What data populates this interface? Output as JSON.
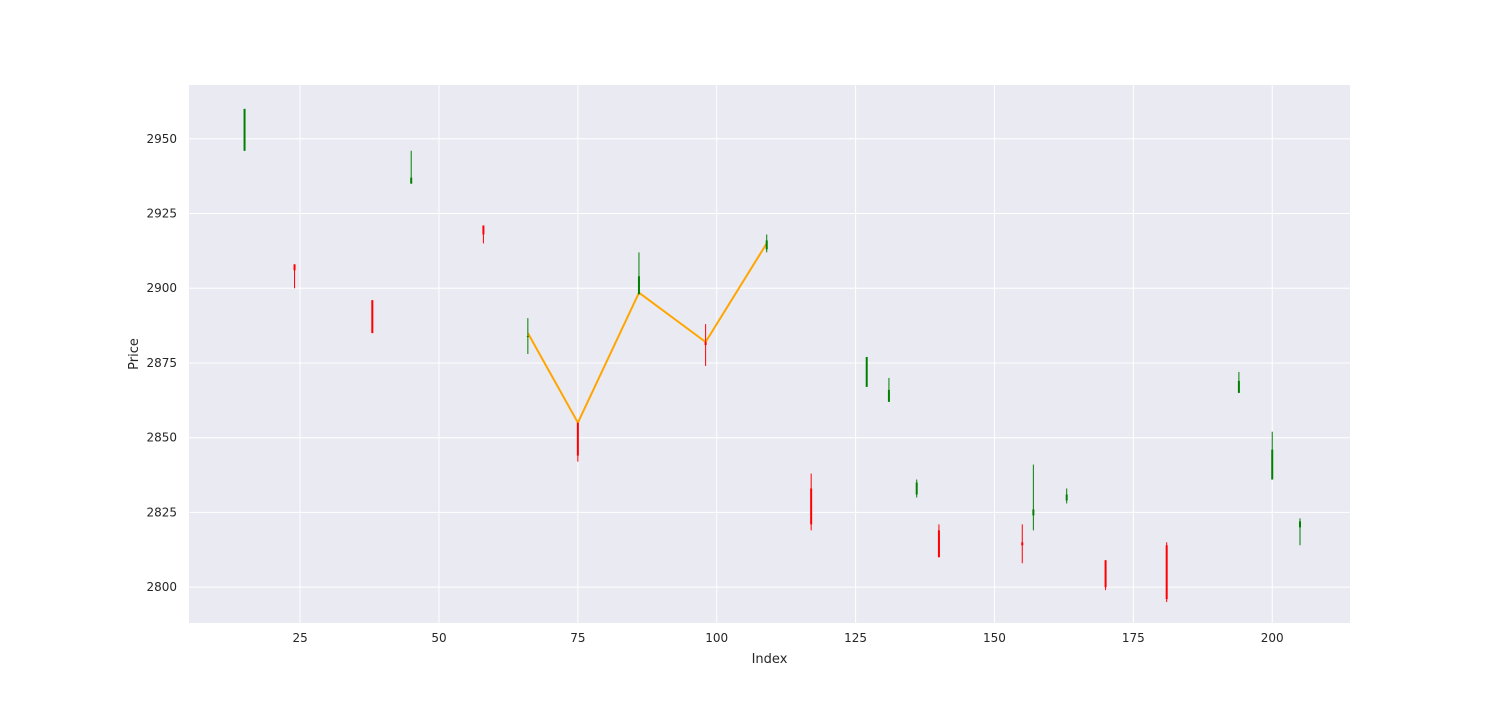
{
  "chart_data": {
    "type": "candlestick",
    "xlabel": "Index",
    "ylabel": "Price",
    "xlim": [
      5,
      214
    ],
    "ylim": [
      2788,
      2968
    ],
    "x_ticks": [
      25,
      50,
      75,
      100,
      125,
      150,
      175,
      200
    ],
    "y_ticks": [
      2800,
      2825,
      2850,
      2875,
      2900,
      2925,
      2950
    ],
    "grid": true,
    "legend": "none",
    "colors": {
      "background": "#eaeaf2",
      "grid": "#ffffff",
      "up": "#008000",
      "down": "#ff0000",
      "line": "#ffa500"
    },
    "candles": [
      {
        "x": 15,
        "open": 2946,
        "high": 2960,
        "low": 2946,
        "close": 2960
      },
      {
        "x": 24,
        "open": 2908,
        "high": 2908,
        "low": 2900,
        "close": 2906
      },
      {
        "x": 38,
        "open": 2896,
        "high": 2896,
        "low": 2885,
        "close": 2885
      },
      {
        "x": 45,
        "open": 2935,
        "high": 2946,
        "low": 2935,
        "close": 2937
      },
      {
        "x": 58,
        "open": 2921,
        "high": 2921,
        "low": 2915,
        "close": 2918
      },
      {
        "x": 66,
        "open": 2884,
        "high": 2890,
        "low": 2878,
        "close": 2884
      },
      {
        "x": 75,
        "open": 2855,
        "high": 2855,
        "low": 2842,
        "close": 2844
      },
      {
        "x": 86,
        "open": 2898,
        "high": 2912,
        "low": 2898,
        "close": 2904
      },
      {
        "x": 98,
        "open": 2882,
        "high": 2888,
        "low": 2874,
        "close": 2881
      },
      {
        "x": 109,
        "open": 2913,
        "high": 2918,
        "low": 2912,
        "close": 2916
      },
      {
        "x": 117,
        "open": 2833,
        "high": 2838,
        "low": 2819,
        "close": 2821
      },
      {
        "x": 127,
        "open": 2867,
        "high": 2877,
        "low": 2867,
        "close": 2877
      },
      {
        "x": 131,
        "open": 2862,
        "high": 2870,
        "low": 2862,
        "close": 2866
      },
      {
        "x": 136,
        "open": 2831,
        "high": 2836,
        "low": 2830,
        "close": 2835
      },
      {
        "x": 140,
        "open": 2819,
        "high": 2821,
        "low": 2810,
        "close": 2810
      },
      {
        "x": 155,
        "open": 2815,
        "high": 2821,
        "low": 2808,
        "close": 2814
      },
      {
        "x": 157,
        "open": 2824,
        "high": 2841,
        "low": 2819,
        "close": 2826
      },
      {
        "x": 163,
        "open": 2829,
        "high": 2833,
        "low": 2828,
        "close": 2831
      },
      {
        "x": 170,
        "open": 2809,
        "high": 2809,
        "low": 2799,
        "close": 2800
      },
      {
        "x": 181,
        "open": 2814,
        "high": 2815,
        "low": 2795,
        "close": 2796
      },
      {
        "x": 194,
        "open": 2865,
        "high": 2872,
        "low": 2865,
        "close": 2869
      },
      {
        "x": 200,
        "open": 2836,
        "high": 2852,
        "low": 2836,
        "close": 2846
      },
      {
        "x": 205,
        "open": 2820,
        "high": 2823,
        "low": 2814,
        "close": 2822
      }
    ],
    "line": {
      "x": [
        66,
        75,
        86,
        98,
        109
      ],
      "y": [
        2885,
        2855,
        2898.5,
        2882,
        2915
      ]
    }
  }
}
